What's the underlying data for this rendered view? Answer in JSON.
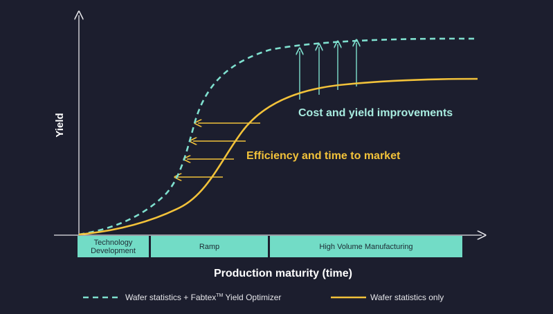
{
  "colors": {
    "background": "#1c1e2e",
    "axis": "#e6e6ea",
    "teal": "#7fe0cf",
    "teal_text": "#a8ece0",
    "yellow": "#f2c23a",
    "stage_fill": "#72dcc6",
    "stage_text": "#1c2a33",
    "label": "#ffffff"
  },
  "axes": {
    "y_label": "Yield",
    "x_label": "Production maturity (time)"
  },
  "stages": [
    {
      "label_line1": "Technology",
      "label_line2": "Development"
    },
    {
      "label": "Ramp"
    },
    {
      "label": "High Volume Manufacturing"
    }
  ],
  "annotations": {
    "cost_yield": "Cost and yield improvements",
    "efficiency": "Efficiency and time to market"
  },
  "legend": {
    "dashed_prefix": "Wafer statistics + Fabtex",
    "dashed_tm": "TM",
    "dashed_suffix": " Yield Optimizer",
    "solid": "Wafer statistics only"
  }
}
